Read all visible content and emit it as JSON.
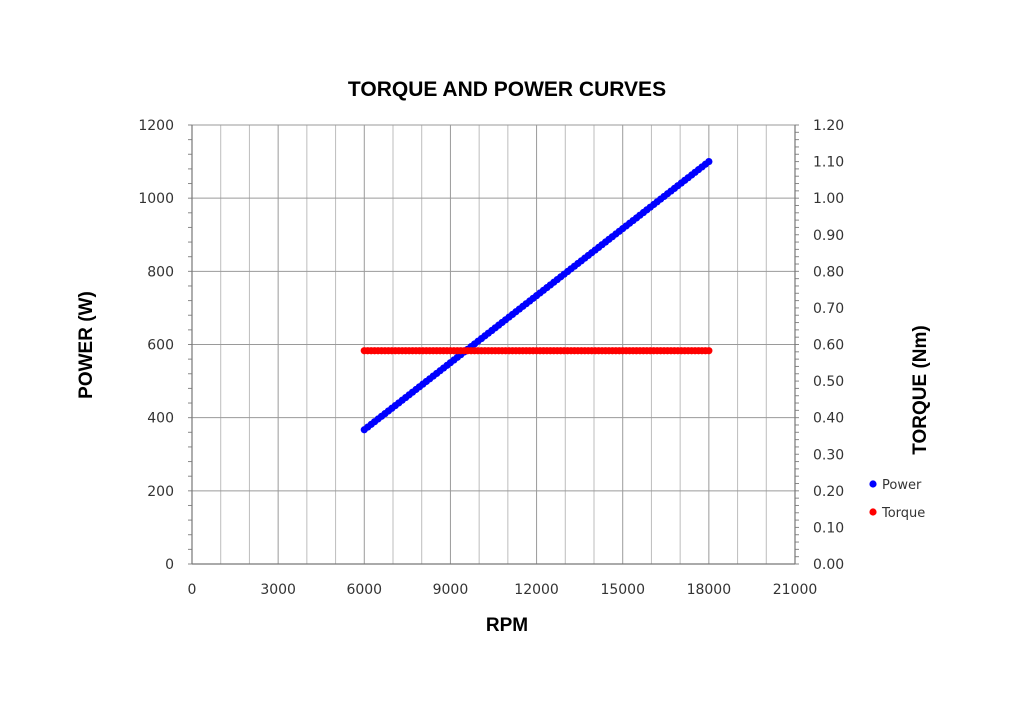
{
  "chart_data": {
    "type": "scatter",
    "title": "TORQUE AND POWER CURVES",
    "xlabel": "RPM",
    "ylabel": "POWER (W)",
    "y2label": "TORQUE (Nm)",
    "xlim": [
      0,
      21000
    ],
    "ylim": [
      0,
      1200
    ],
    "y2lim": [
      0,
      1.2
    ],
    "x_ticks": [
      "0",
      "3000",
      "6000",
      "9000",
      "12000",
      "15000",
      "18000",
      "21000"
    ],
    "y_ticks": [
      "0",
      "200",
      "400",
      "600",
      "800",
      "1000",
      "1200"
    ],
    "y2_ticks": [
      "0.00",
      "0.10",
      "0.20",
      "0.30",
      "0.40",
      "0.50",
      "0.60",
      "0.70",
      "0.80",
      "0.90",
      "1.00",
      "1.10",
      "1.20"
    ],
    "grid": true,
    "legend_position": "right",
    "series": [
      {
        "name": "Power",
        "axis": "left",
        "color": "#0000ff",
        "x": [
          6000,
          18000
        ],
        "y": [
          367,
          1100
        ]
      },
      {
        "name": "Torque",
        "axis": "right",
        "color": "#ff0000",
        "x": [
          6000,
          18000
        ],
        "y": [
          0.583,
          0.583
        ]
      }
    ]
  }
}
